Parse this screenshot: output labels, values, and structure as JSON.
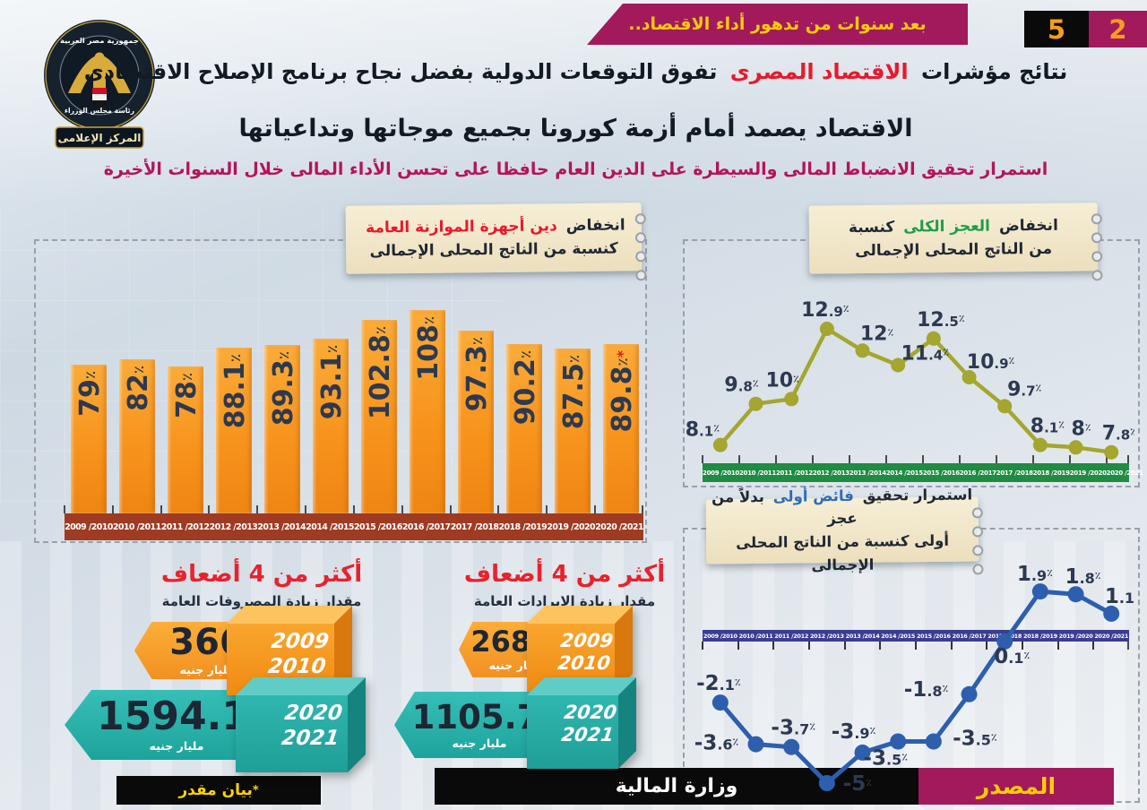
{
  "header": {
    "banner_text": "بعد سنوات من تدهور أداء الاقتصاد..",
    "page_number_black": "5",
    "page_number_magenta": "2",
    "logo": {
      "ring_top": "جمهورية مصر العربية",
      "ring_bottom": "رئاسة مجلس الوزراء",
      "ribbon": "المركز الإعلامى"
    },
    "title_part1": "نتائج مؤشرات",
    "title_highlight": "الاقتصاد المصرى",
    "title_part2": "تفوق التوقعات الدولية بفضل نجاح برنامج الإصلاح الاقتصادى",
    "title_line2": "الاقتصاد يصمد أمام أزمة كورونا بجميع موجاتها وتداعياتها",
    "subtitle": "استمرار تحقيق الانضباط المالى والسيطرة على الدين العام حافظا على تحسن الأداء المالى خلال السنوات الأخيرة"
  },
  "years": [
    "2009 /2010",
    "2010 /2011",
    "2011 /2012",
    "2012 /2013",
    "2013 /2014",
    "2014 /2015",
    "2015 /2016",
    "2016 /2017",
    "2017 /2018",
    "2018 /2019",
    "2019 /2020",
    "2020 /2021"
  ],
  "chart_data": [
    {
      "id": "budget-debt",
      "type": "bar",
      "title_black": "انخفاض",
      "title_red": "دين أجهزة الموازنة العامة",
      "title_line2": "كنسبة من الناتج المحلى الإجمالى",
      "categories": [
        "2009 /2010",
        "2010 /2011",
        "2011 /2012",
        "2012 /2013",
        "2013 /2014",
        "2014 /2015",
        "2015 /2016",
        "2016 /2017",
        "2017 /2018",
        "2018 /2019",
        "2019 /2020",
        "2020 /2021"
      ],
      "values": [
        79,
        82,
        78,
        88.1,
        89.3,
        93.1,
        102.8,
        108,
        97.3,
        90.2,
        87.5,
        89.8
      ],
      "unit": "٪",
      "ylim": [
        0,
        115
      ],
      "estimated_indices": [
        11
      ],
      "bar_color": "#f7941d",
      "axis_band_color": "#9e3b22"
    },
    {
      "id": "overall-deficit",
      "type": "line",
      "title_black1": "انخفاض",
      "title_green": "العجز الكلى",
      "title_black2": "كنسبة",
      "title_line2": "من الناتج المحلى الإجمالى",
      "categories": [
        "2009 /2010",
        "2010 /2011",
        "2011 /2012",
        "2012 /2013",
        "2013 /2014",
        "2014 /2015",
        "2015 /2016",
        "2016 /2017",
        "2017 /2018",
        "2018 /2019",
        "2019 /2020",
        "2020 /2021"
      ],
      "values": [
        8.1,
        9.8,
        10,
        12.9,
        12,
        11.4,
        12.5,
        10.9,
        9.7,
        8.1,
        8,
        7.8
      ],
      "unit": "٪",
      "ylim": [
        7,
        13.5
      ],
      "estimated_indices": [
        11
      ],
      "line_color": "#a4a62f",
      "axis_band_color": "#1f8b43"
    },
    {
      "id": "primary-balance",
      "type": "line",
      "title_black1": "استمرار تحقيق",
      "title_blue": "فائض أولى",
      "title_black2": "بدلاً من عجز",
      "title_line2": "أولى كنسبة من الناتج المحلى الإجمالى",
      "categories": [
        "2009 /2010",
        "2010 /2011",
        "2011 /2012",
        "2012 /2013",
        "2013 /2014",
        "2014 /2015",
        "2015 /2016",
        "2016 /2017",
        "2017 /2018",
        "2018 /2019",
        "2019 /2020",
        "2020 /2021"
      ],
      "values": [
        -2.1,
        -3.6,
        -3.7,
        -5,
        -3.9,
        -3.5,
        -3.5,
        -1.8,
        0.1,
        1.9,
        1.8,
        1.1
      ],
      "unit": "٪",
      "ylim": [
        -6,
        3
      ],
      "estimated_indices": [
        11
      ],
      "line_color": "#2d5fae",
      "axis_band_color": "#3a3d91"
    }
  ],
  "comparisons": [
    {
      "title": "أكثر من 4 أضعاف",
      "subtitle": "مقدار زيادة المصروفات العامة",
      "base": {
        "value": "366",
        "unit": "مليار جنيه",
        "year_top": "2009",
        "year_bottom": "2010"
      },
      "latest": {
        "value": "1594.1",
        "unit": "مليار جنيه",
        "year_top": "2020",
        "year_bottom": "2021",
        "estimated": true
      }
    },
    {
      "title": "أكثر من 4 أضعاف",
      "subtitle": "مقدار زيادة الإيرادات العامة",
      "base": {
        "value": "268.1",
        "unit": "مليار جنيه",
        "year_top": "2009",
        "year_bottom": "2010"
      },
      "latest": {
        "value": "1105.7",
        "unit": "مليار جنيه",
        "year_top": "2020",
        "year_bottom": "2021",
        "estimated": true
      }
    }
  ],
  "footer": {
    "estimated_mark": "*",
    "estimated_note": "بيان مقدر",
    "ministry": "وزارة المالية",
    "source_label": "المصدر"
  },
  "colors": {
    "magenta": "#a21a5c",
    "orange": "#f7941d",
    "teal": "#27b1aa",
    "olive_line": "#a4a62f",
    "blue_line": "#2d5fae",
    "maroon_band": "#9e3b22",
    "green_band": "#1f8b43",
    "navy_band": "#3a3d91",
    "title_red": "#e8192c",
    "label_navy": "#2c3950"
  }
}
